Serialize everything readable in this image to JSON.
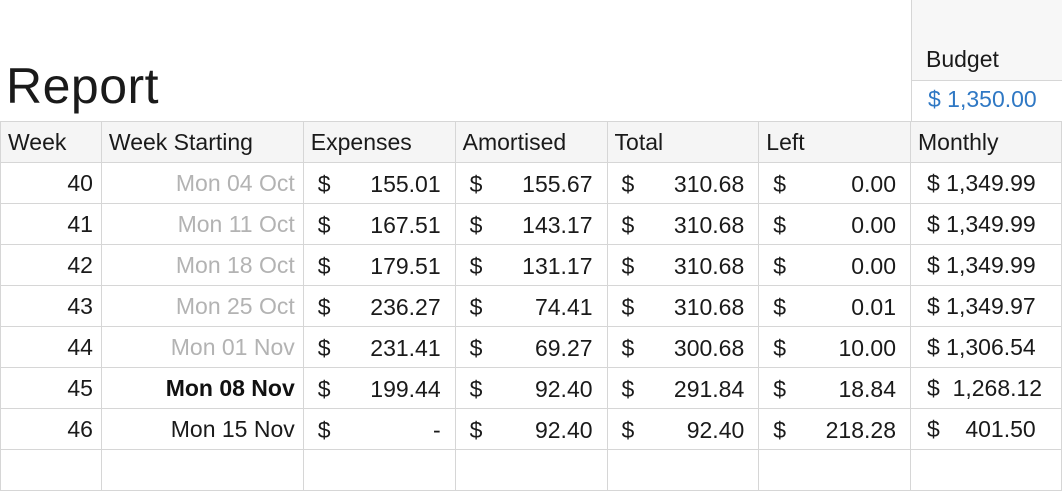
{
  "report_title": "Report",
  "budget": {
    "label": "Budget",
    "value": "$ 1,350.00",
    "value_color": "#2f78c4"
  },
  "columns": [
    "Week",
    "Week Starting",
    "Expenses",
    "Amortised",
    "Total",
    "Left",
    "Monthly"
  ],
  "rows": [
    {
      "week": "40",
      "start": "Mon 04 Oct",
      "expenses": "155.01",
      "amortised": "155.67",
      "total": "310.68",
      "left": "0.00",
      "monthly": "$ 1,349.99",
      "state": "past"
    },
    {
      "week": "41",
      "start": "Mon 11 Oct",
      "expenses": "167.51",
      "amortised": "143.17",
      "total": "310.68",
      "left": "0.00",
      "monthly": "$ 1,349.99",
      "state": "past"
    },
    {
      "week": "42",
      "start": "Mon 18 Oct",
      "expenses": "179.51",
      "amortised": "131.17",
      "total": "310.68",
      "left": "0.00",
      "monthly": "$ 1,349.99",
      "state": "past"
    },
    {
      "week": "43",
      "start": "Mon 25 Oct",
      "expenses": "236.27",
      "amortised": "74.41",
      "total": "310.68",
      "left": "0.01",
      "monthly": "$ 1,349.97",
      "state": "past"
    },
    {
      "week": "44",
      "start": "Mon 01 Nov",
      "expenses": "231.41",
      "amortised": "69.27",
      "total": "300.68",
      "left": "10.00",
      "monthly": "$ 1,306.54",
      "state": "past"
    },
    {
      "week": "45",
      "start": "Mon 08 Nov",
      "expenses": "199.44",
      "amortised": "92.40",
      "total": "291.84",
      "left": "18.84",
      "monthly": "$  1,268.12",
      "state": "current"
    },
    {
      "week": "46",
      "start": "Mon 15 Nov",
      "expenses": "-",
      "amortised": "92.40",
      "total": "92.40",
      "left": "218.28",
      "monthly": "$    401.50",
      "state": "future"
    }
  ],
  "currency_symbol": "$"
}
